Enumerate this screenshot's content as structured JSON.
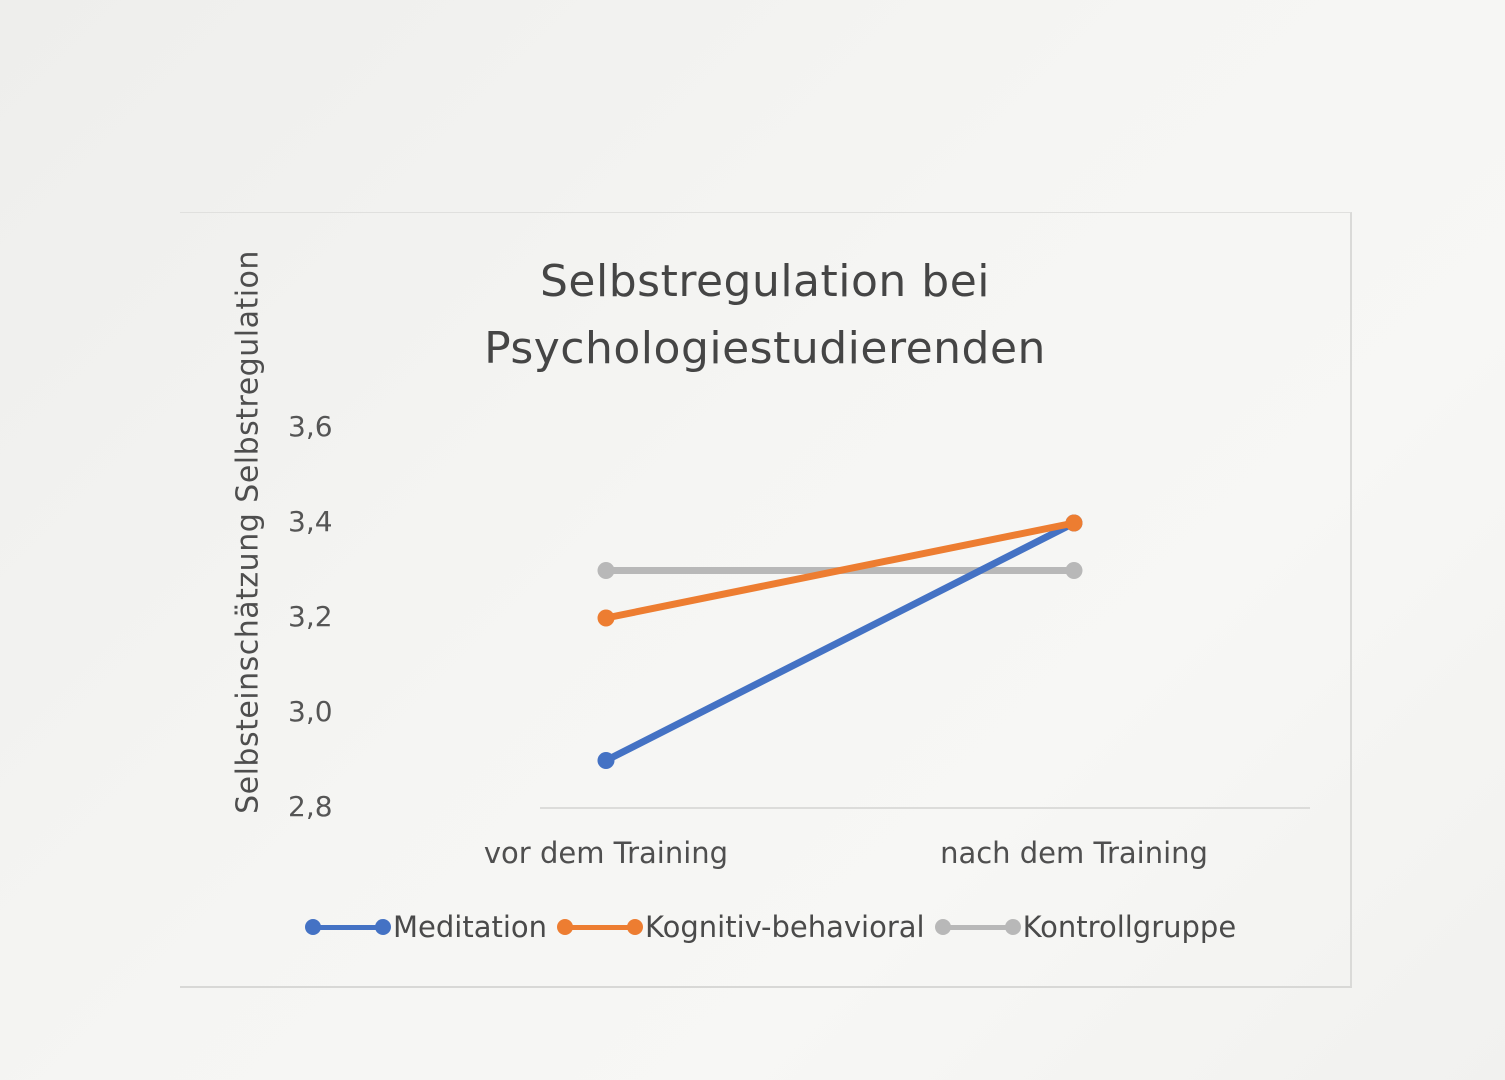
{
  "chart_data": {
    "type": "line",
    "title_lines": [
      "Selbstregulation bei",
      "Psychologiestudierenden"
    ],
    "xlabel": "",
    "ylabel": "Selbsteinschätzung  Selbstregulation",
    "categories": [
      "vor dem Training",
      "nach dem Training"
    ],
    "y_ticks": [
      "3,6",
      "3,4",
      "3,2",
      "3,0",
      "2,8"
    ],
    "ylim": [
      2.8,
      3.6
    ],
    "grid": false,
    "legend_position": "bottom",
    "series": [
      {
        "name": "Meditation",
        "values": [
          2.9,
          3.4
        ],
        "color": "#4472c4"
      },
      {
        "name": "Kognitiv-behavioral",
        "values": [
          3.2,
          3.4
        ],
        "color": "#ed7d31"
      },
      {
        "name": "Kontrollgruppe",
        "values": [
          3.3,
          3.3
        ],
        "color": "#b8b8b8"
      }
    ]
  }
}
